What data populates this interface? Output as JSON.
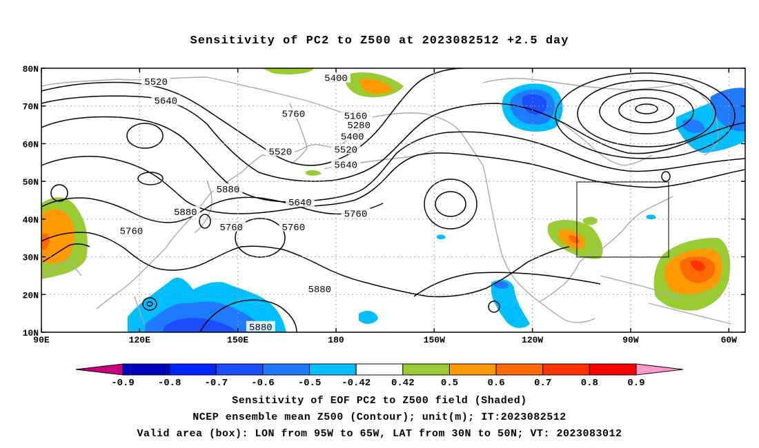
{
  "title": "Sensitivity of PC2 to Z500 at 2023082512 +2.5 day",
  "axes": {
    "lat_labels": [
      "80N",
      "70N",
      "60N",
      "50N",
      "40N",
      "30N",
      "20N",
      "10N"
    ],
    "lon_labels": [
      "90E",
      "120E",
      "150E",
      "180",
      "150W",
      "120W",
      "90W",
      "60W"
    ]
  },
  "contours": {
    "labels": [
      {
        "text": "5520",
        "lon": 125,
        "lat": 76.5
      },
      {
        "text": "5640",
        "lon": 128,
        "lat": 71.5
      },
      {
        "text": "5520",
        "lon": 163,
        "lat": 58
      },
      {
        "text": "5880",
        "lon": 134,
        "lat": 42
      },
      {
        "text": "5760",
        "lon": 117.5,
        "lat": 37
      },
      {
        "text": "5640",
        "lon": 169,
        "lat": 44.5
      },
      {
        "text": "5760",
        "lon": 167,
        "lat": 38
      },
      {
        "text": "5760",
        "lon": 148,
        "lat": 38
      },
      {
        "text": "5760",
        "lon": 167,
        "lat": 68
      },
      {
        "text": "5880",
        "lon": 147,
        "lat": 48
      },
      {
        "text": "5400",
        "lon": 180,
        "lat": 77.5
      },
      {
        "text": "5160",
        "lon": 186,
        "lat": 67.5
      },
      {
        "text": "5280",
        "lon": 187,
        "lat": 65
      },
      {
        "text": "5400",
        "lon": 185,
        "lat": 62
      },
      {
        "text": "5520",
        "lon": 183,
        "lat": 58.5
      },
      {
        "text": "5640",
        "lon": 183,
        "lat": 54.5
      },
      {
        "text": "5760",
        "lon": 186,
        "lat": 41.5
      },
      {
        "text": "5880",
        "lon": 175,
        "lat": 21.5
      },
      {
        "text": "5880",
        "lon": 157,
        "lat": 11.5
      }
    ]
  },
  "colorbar": {
    "labels": [
      "-0.9",
      "-0.8",
      "-0.7",
      "-0.6",
      "-0.5",
      "-0.42",
      "0.42",
      "0.5",
      "0.6",
      "0.7",
      "0.8",
      "0.9"
    ],
    "colors": [
      "#c7007f",
      "#0000c0",
      "#0026ff",
      "#1a4dff",
      "#1e7aff",
      "#00bfff",
      "#ffffff",
      "#99cc33",
      "#ff9900",
      "#ff6a00",
      "#ff3300",
      "#ff0000",
      "#ff99cc"
    ]
  },
  "footer": {
    "line1": "Sensitivity of EOF PC2 to Z500 field (Shaded)",
    "line2": "NCEP ensemble mean Z500 (Contour); unit(m); IT:2023082512",
    "line3": "Valid area (box): LON from 95W to 65W, LAT from 30N to 50N; VT: 2023083012"
  }
}
